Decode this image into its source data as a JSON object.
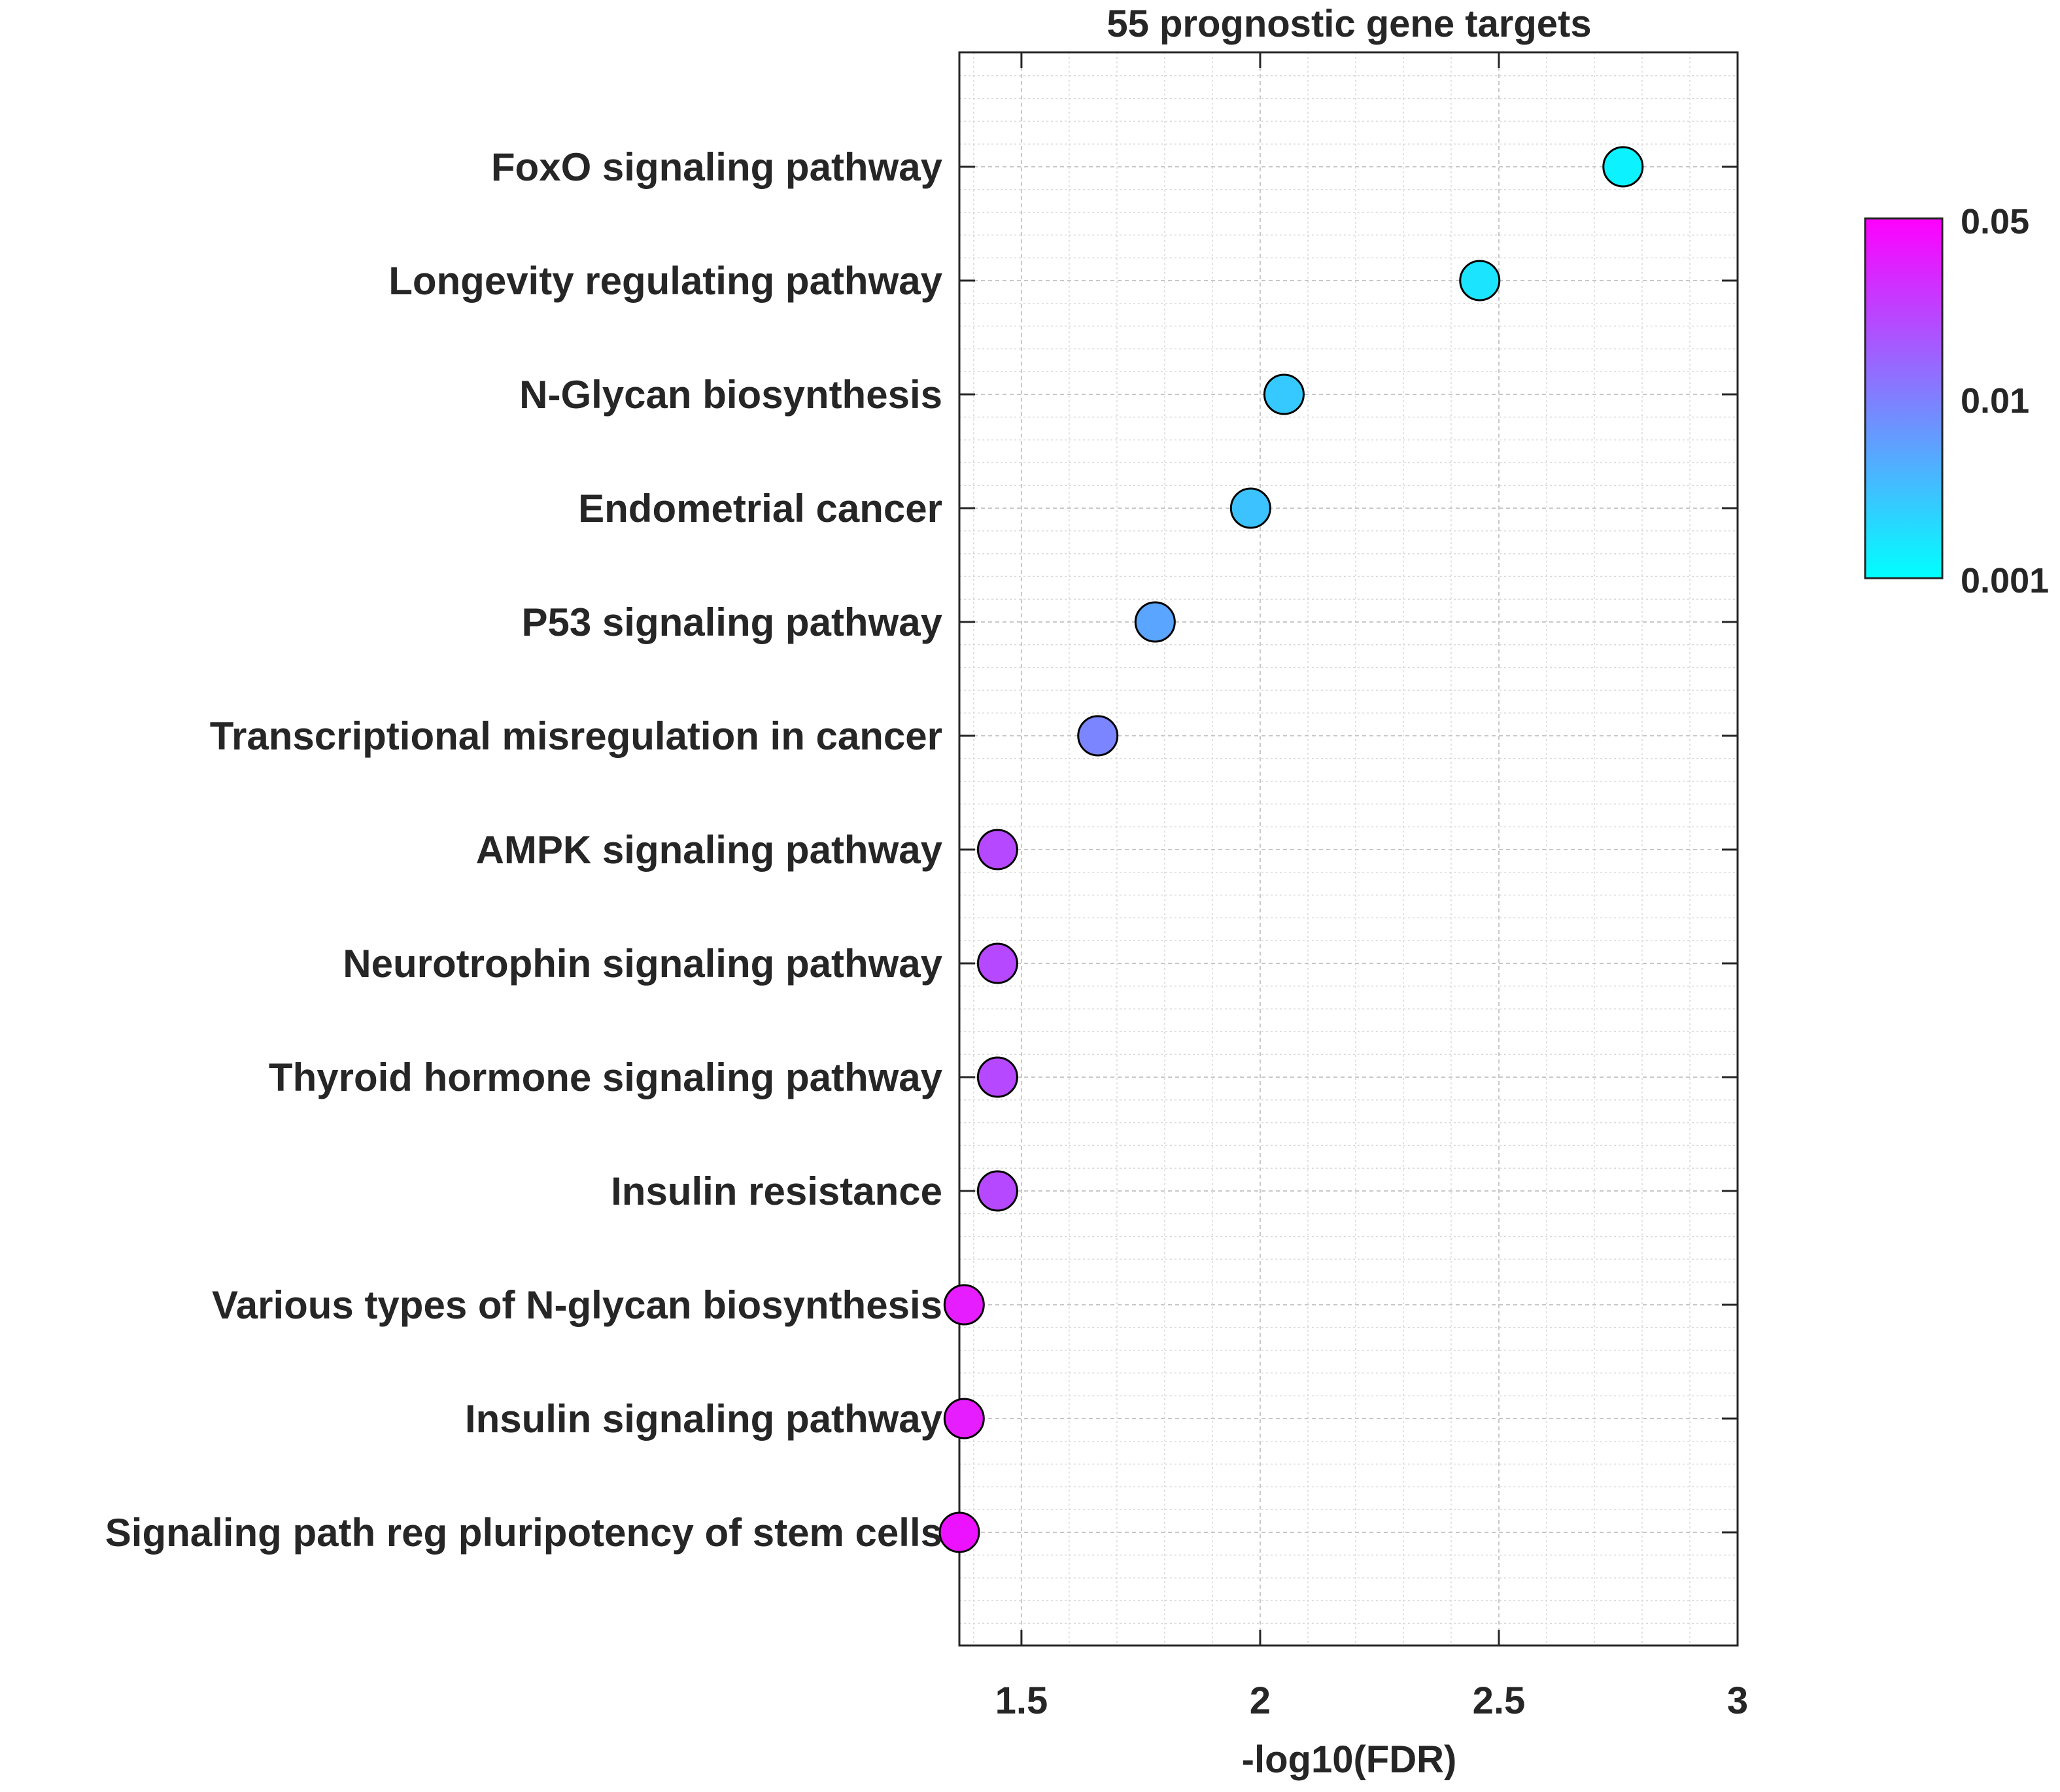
{
  "chart_data": {
    "type": "scatter",
    "title": "55 prognostic gene targets",
    "xlabel": "-log10(FDR)",
    "ylabel": "",
    "xlim": [
      1.37,
      3.0
    ],
    "x_ticks": [
      1.5,
      2,
      2.5,
      3
    ],
    "x_tick_labels": [
      "1.5",
      "2",
      "2.5",
      "3"
    ],
    "grid": true,
    "minor_grid": true,
    "categories": [
      "FoxO signaling pathway",
      "Longevity regulating pathway",
      "N-Glycan biosynthesis",
      "Endometrial cancer",
      "P53 signaling pathway",
      "Transcriptional misregulation in cancer",
      "AMPK signaling pathway",
      "Neurotrophin signaling pathway",
      "Thyroid hormone signaling pathway",
      "Insulin resistance",
      "Various types of N-glycan biosynthesis",
      "Insulin signaling pathway",
      "Signaling path reg pluripotency of stem cells"
    ],
    "x": [
      2.76,
      2.46,
      2.05,
      1.98,
      1.78,
      1.66,
      1.45,
      1.45,
      1.45,
      1.45,
      1.38,
      1.38,
      1.37
    ],
    "fdr": [
      0.0017,
      0.0035,
      0.0089,
      0.0105,
      0.0166,
      0.0219,
      0.0355,
      0.0355,
      0.0355,
      0.0355,
      0.0417,
      0.0417,
      0.0427
    ],
    "colorbar": {
      "label_top": "0.05",
      "label_mid": "0.01",
      "label_bottom": "0.001",
      "color_low": "#00ffff",
      "color_high": "#ff00ff"
    },
    "point_colors": [
      "#0cf3ff",
      "#1be4ff",
      "#36c9ff",
      "#3cc3ff",
      "#5aa5ff",
      "#7a85ff",
      "#b648ff",
      "#b648ff",
      "#b648ff",
      "#b648ff",
      "#e61dff",
      "#e61dff",
      "#ed12ff"
    ]
  }
}
